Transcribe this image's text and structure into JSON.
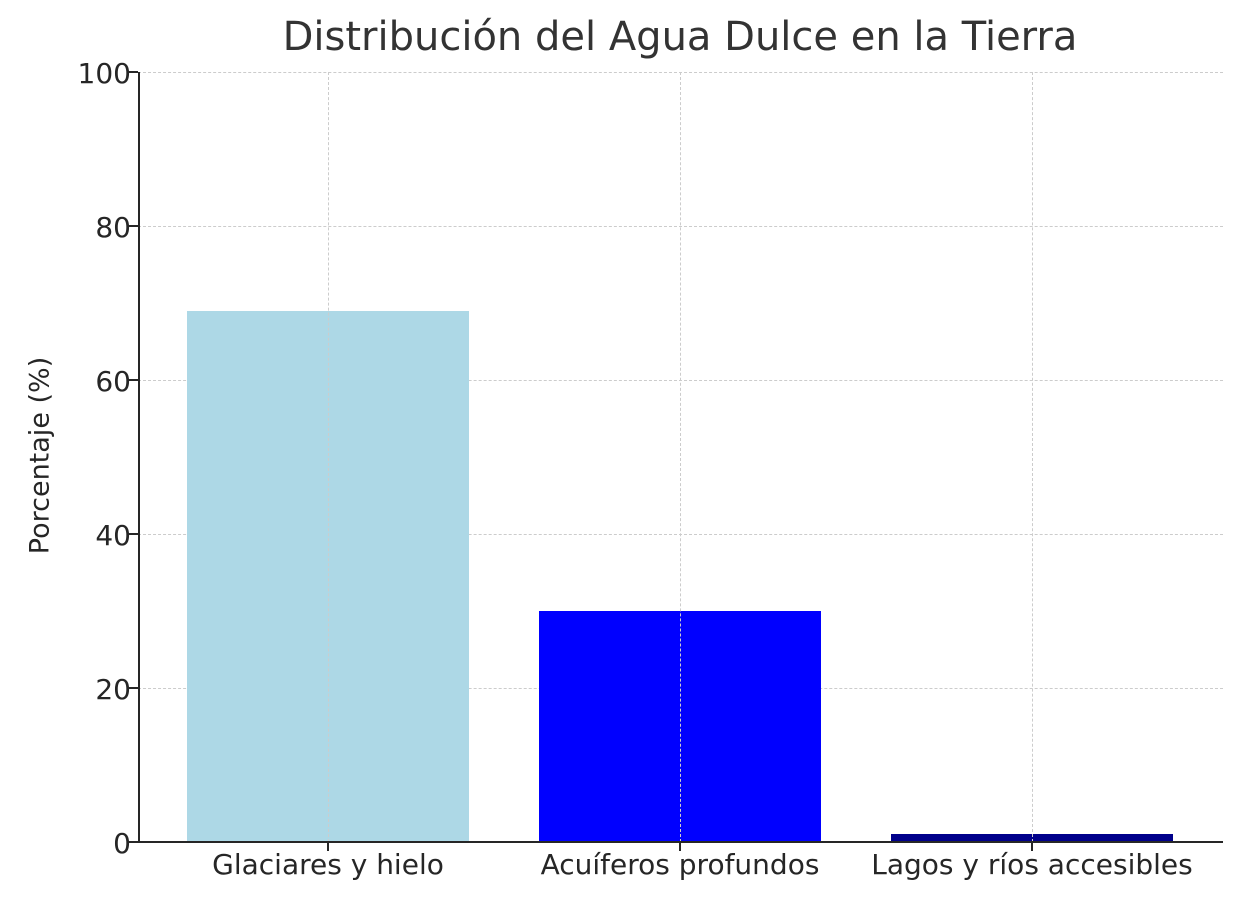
{
  "chart_data": {
    "type": "bar",
    "title": "Distribución del Agua Dulce en la Tierra",
    "xlabel": "",
    "ylabel": "Porcentaje (%)",
    "categories": [
      "Glaciares y hielo",
      "Acuíferos profundos",
      "Lagos y ríos accesibles"
    ],
    "values": [
      69,
      30,
      1
    ],
    "colors": [
      "#add8e6",
      "#0000ff",
      "#00008b"
    ],
    "ylim": [
      0,
      100
    ],
    "yticks": [
      0,
      20,
      40,
      60,
      80,
      100
    ],
    "grid": true,
    "legend": null
  },
  "labels": {
    "title": "Distribución del Agua Dulce en la Tierra",
    "ylabel": "Porcentaje (%)",
    "yticks": [
      "0",
      "20",
      "40",
      "60",
      "80",
      "100"
    ],
    "xticks": [
      "Glaciares y hielo",
      "Acuíferos profundos",
      "Lagos y ríos accesibles"
    ]
  }
}
